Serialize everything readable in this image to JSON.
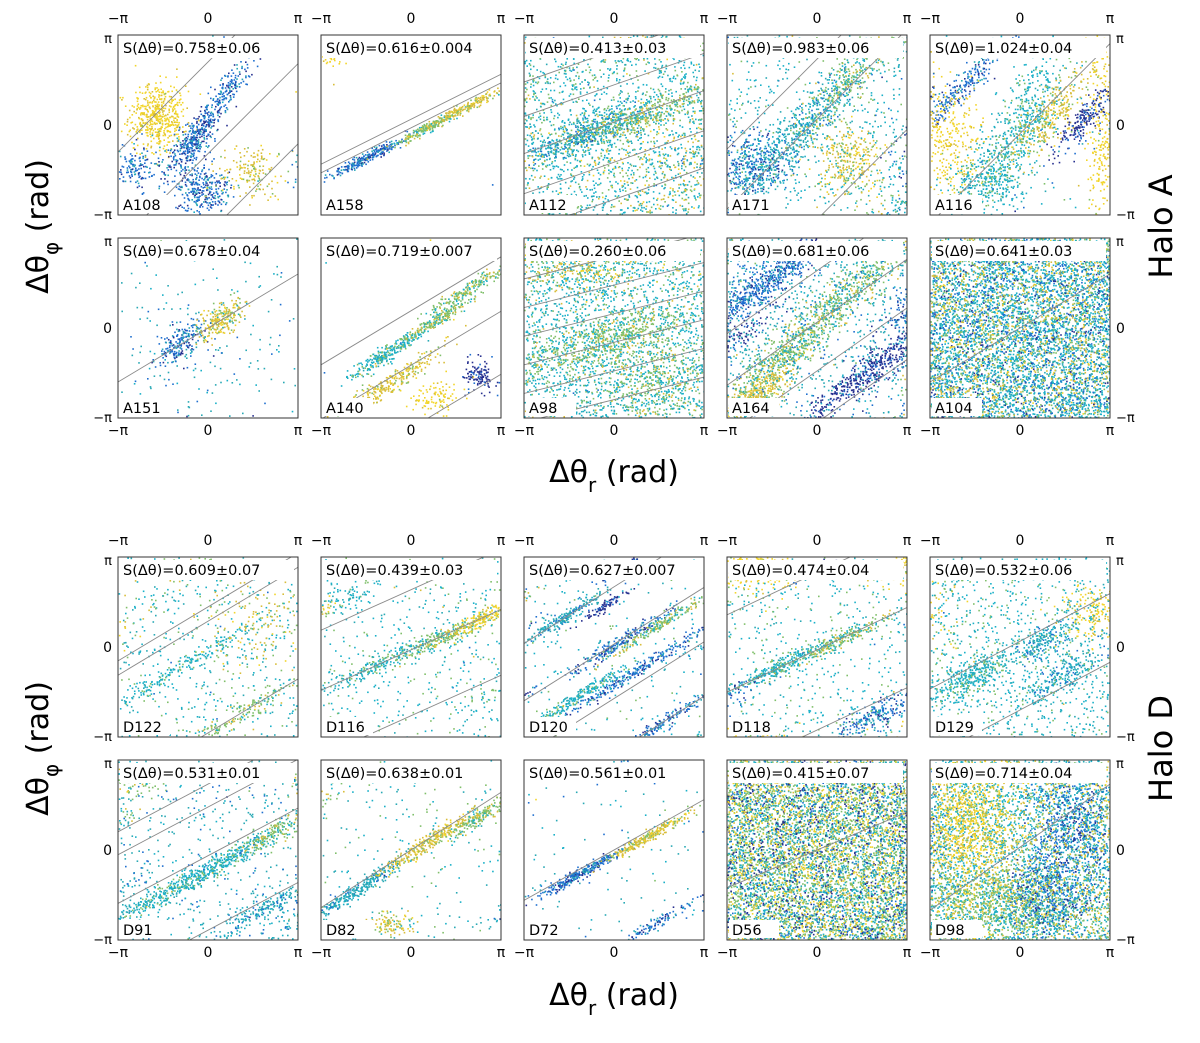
{
  "figure": {
    "halos": [
      {
        "name": "Halo A",
        "ylabel_symbol": "Δθ",
        "ylabel_sub": "φ",
        "ylabel_unit": " (rad)",
        "xlabel_symbol": "Δθ",
        "xlabel_sub": "r",
        "xlabel_unit": " (rad)"
      },
      {
        "name": "Halo D",
        "ylabel_symbol": "Δθ",
        "ylabel_sub": "φ",
        "ylabel_unit": " (rad)",
        "xlabel_symbol": "Δθ",
        "xlabel_sub": "r",
        "xlabel_unit": " (rad)"
      }
    ],
    "tick_labels": [
      "−π",
      "0",
      "π"
    ],
    "colors": {
      "yellow": "#f2d52a",
      "gold": "#d8bd3a",
      "green": "#7fbf6a",
      "teal": "#29a9b5",
      "cyan": "#19b0c8",
      "blue": "#1f6fcf",
      "darkblue": "#27308f",
      "line": "#8a8a8a"
    }
  },
  "chart_data": [
    {
      "type": "scatter",
      "halo": "Halo A",
      "id": "A108",
      "stat": "S(Δθ)=0.758±0.06",
      "xlim": [
        -3.1416,
        3.1416
      ],
      "ylim": [
        -3.1416,
        3.1416
      ],
      "slope": 1.0,
      "lines": [
        2.2,
        -1.0,
        -3.8
      ]
    },
    {
      "type": "scatter",
      "halo": "Halo A",
      "id": "A158",
      "stat": "S(Δθ)=0.616±0.004",
      "xlim": [
        -3.1416,
        3.1416
      ],
      "ylim": [
        -3.1416,
        3.1416
      ],
      "slope": 0.5,
      "lines": [
        0.2,
        -0.1
      ]
    },
    {
      "type": "scatter",
      "halo": "Halo A",
      "id": "A112",
      "stat": "S(Δθ)=0.413±0.03",
      "xlim": [
        -3.1416,
        3.1416
      ],
      "ylim": [
        -3.1416,
        3.1416
      ],
      "slope": 0.35,
      "lines": [
        2.6,
        1.4,
        0.1,
        -1.3,
        -2.6
      ]
    },
    {
      "type": "scatter",
      "halo": "Halo A",
      "id": "A171",
      "stat": "S(Δθ)=0.983±0.06",
      "xlim": [
        -3.1416,
        3.1416
      ],
      "ylim": [
        -3.1416,
        3.1416
      ],
      "slope": 1.0,
      "lines": [
        2.3,
        0.2,
        -3.3
      ]
    },
    {
      "type": "scatter",
      "halo": "Halo A",
      "id": "A116",
      "stat": "S(Δθ)=1.024±0.04",
      "xlim": [
        -3.1416,
        3.1416
      ],
      "ylim": [
        -3.1416,
        3.1416
      ],
      "slope": 1.0,
      "lines": [
        -0.3
      ]
    },
    {
      "type": "scatter",
      "halo": "Halo A",
      "id": "A151",
      "stat": "S(Δθ)=0.678±0.04",
      "xlim": [
        -3.1416,
        3.1416
      ],
      "ylim": [
        -3.1416,
        3.1416
      ],
      "slope": 0.6,
      "lines": [
        0.0
      ]
    },
    {
      "type": "scatter",
      "halo": "Halo A",
      "id": "A140",
      "stat": "S(Δθ)=0.719±0.007",
      "xlim": [
        -3.1416,
        3.1416
      ],
      "ylim": [
        -3.1416,
        3.1416
      ],
      "slope": 0.6,
      "lines": [
        0.6,
        -1.3,
        -3.5
      ]
    },
    {
      "type": "scatter",
      "halo": "Halo A",
      "id": "A98",
      "stat": "S(Δθ)=0.260±0.06",
      "xlim": [
        -3.1416,
        3.1416
      ],
      "ylim": [
        -3.1416,
        3.1416
      ],
      "slope": 0.25,
      "lines": [
        2.5,
        1.5,
        0.5,
        -0.5,
        -1.5,
        -2.5
      ]
    },
    {
      "type": "scatter",
      "halo": "Halo A",
      "id": "A164",
      "stat": "S(Δθ)=0.681±0.06",
      "xlim": [
        -3.1416,
        3.1416
      ],
      "ylim": [
        -3.1416,
        3.1416
      ],
      "slope": 0.7,
      "lines": [
        2.0,
        0.2,
        -1.5,
        -3.3
      ]
    },
    {
      "type": "scatter",
      "halo": "Halo A",
      "id": "A104",
      "stat": "S(Δθ)=0.641±0.03",
      "xlim": [
        -3.1416,
        3.1416
      ],
      "ylim": [
        -3.1416,
        3.1416
      ],
      "slope": 0.6,
      "lines": [
        0.0
      ]
    },
    {
      "type": "scatter",
      "halo": "Halo D",
      "id": "D122",
      "stat": "S(Δθ)=0.609±0.07",
      "xlim": [
        -3.1416,
        3.1416
      ],
      "ylim": [
        -3.1416,
        3.1416
      ],
      "slope": 0.6,
      "lines": [
        1.4,
        0.9,
        -3.0
      ]
    },
    {
      "type": "scatter",
      "halo": "Halo D",
      "id": "D116",
      "stat": "S(Δθ)=0.439±0.03",
      "xlim": [
        -3.1416,
        3.1416
      ],
      "ylim": [
        -3.1416,
        3.1416
      ],
      "slope": 0.45,
      "lines": [
        2.0,
        -0.1,
        -2.4
      ]
    },
    {
      "type": "scatter",
      "halo": "Halo D",
      "id": "D120",
      "stat": "S(Δθ)=0.627±0.007",
      "xlim": [
        -3.1416,
        3.1416
      ],
      "ylim": [
        -3.1416,
        3.1416
      ],
      "slope": 0.63,
      "lines": [
        2.1,
        0.1,
        -1.8,
        -3.7
      ]
    },
    {
      "type": "scatter",
      "halo": "Halo D",
      "id": "D118",
      "stat": "S(Δθ)=0.474±0.04",
      "xlim": [
        -3.1416,
        3.1416
      ],
      "ylim": [
        -3.1416,
        3.1416
      ],
      "slope": 0.47,
      "lines": [
        2.6,
        -0.1,
        -2.9
      ]
    },
    {
      "type": "scatter",
      "halo": "Halo D",
      "id": "D129",
      "stat": "S(Δθ)=0.532±0.06",
      "xlim": [
        -3.1416,
        3.1416
      ],
      "ylim": [
        -3.1416,
        3.1416
      ],
      "slope": 0.53,
      "lines": [
        0.2,
        -2.2
      ]
    },
    {
      "type": "scatter",
      "halo": "Halo D",
      "id": "D91",
      "stat": "S(Δθ)=0.531±0.01",
      "xlim": [
        -3.1416,
        3.1416
      ],
      "ylim": [
        -3.1416,
        3.1416
      ],
      "slope": 0.53,
      "lines": [
        2.3,
        1.5,
        -0.2,
        -2.8
      ]
    },
    {
      "type": "scatter",
      "halo": "Halo D",
      "id": "D82",
      "stat": "S(Δθ)=0.638±0.01",
      "xlim": [
        -3.1416,
        3.1416
      ],
      "ylim": [
        -3.1416,
        3.1416
      ],
      "slope": 0.64,
      "lines": [
        0.0
      ]
    },
    {
      "type": "scatter",
      "halo": "Halo D",
      "id": "D72",
      "stat": "S(Δθ)=0.561±0.01",
      "xlim": [
        -3.1416,
        3.1416
      ],
      "ylim": [
        -3.1416,
        3.1416
      ],
      "slope": 0.56,
      "lines": [
        0.0
      ]
    },
    {
      "type": "scatter",
      "halo": "Halo D",
      "id": "D56",
      "stat": "S(Δθ)=0.415±0.07",
      "xlim": [
        -3.1416,
        3.1416
      ],
      "ylim": [
        -3.1416,
        3.1416
      ],
      "slope": 0.42,
      "lines": [
        0.0
      ]
    },
    {
      "type": "scatter",
      "halo": "Halo D",
      "id": "D98",
      "stat": "S(Δθ)=0.714±0.04",
      "xlim": [
        -3.1416,
        3.1416
      ],
      "ylim": [
        -3.1416,
        3.1416
      ],
      "slope": 0.7,
      "lines": [
        0.1
      ]
    }
  ]
}
